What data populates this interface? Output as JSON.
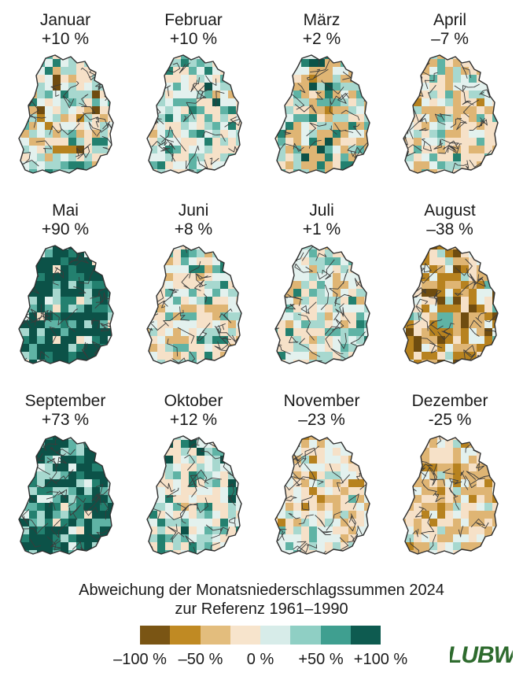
{
  "months": [
    {
      "name": "Januar",
      "pct": "+10 %",
      "mix": [
        0.05,
        0.03,
        0.08,
        0.22,
        0.22,
        0.22,
        0.12,
        0.05,
        0.01
      ]
    },
    {
      "name": "Februar",
      "pct": "+10 %",
      "mix": [
        0.0,
        0.0,
        0.02,
        0.3,
        0.3,
        0.18,
        0.12,
        0.06,
        0.02
      ]
    },
    {
      "name": "März",
      "pct": "+2 %",
      "mix": [
        0.0,
        0.03,
        0.25,
        0.15,
        0.15,
        0.15,
        0.12,
        0.1,
        0.05
      ]
    },
    {
      "name": "April",
      "pct": "–7 %",
      "mix": [
        0.0,
        0.02,
        0.25,
        0.3,
        0.2,
        0.13,
        0.08,
        0.02,
        0.0
      ]
    },
    {
      "name": "Mai",
      "pct": "+90 %",
      "mix": [
        0.0,
        0.0,
        0.0,
        0.03,
        0.05,
        0.1,
        0.15,
        0.2,
        0.47
      ]
    },
    {
      "name": "Juni",
      "pct": "+8 %",
      "mix": [
        0.0,
        0.0,
        0.12,
        0.3,
        0.25,
        0.15,
        0.1,
        0.06,
        0.02
      ]
    },
    {
      "name": "Juli",
      "pct": "+1 %",
      "mix": [
        0.0,
        0.0,
        0.1,
        0.32,
        0.3,
        0.18,
        0.08,
        0.02,
        0.0
      ]
    },
    {
      "name": "August",
      "pct": "–38 %",
      "mix": [
        0.12,
        0.3,
        0.22,
        0.15,
        0.1,
        0.06,
        0.05,
        0.0,
        0.0
      ]
    },
    {
      "name": "September",
      "pct": "+73 %",
      "mix": [
        0.0,
        0.0,
        0.0,
        0.02,
        0.05,
        0.1,
        0.2,
        0.25,
        0.38
      ]
    },
    {
      "name": "Oktober",
      "pct": "+12 %",
      "mix": [
        0.0,
        0.0,
        0.03,
        0.3,
        0.25,
        0.17,
        0.12,
        0.08,
        0.05
      ]
    },
    {
      "name": "November",
      "pct": "–23 %",
      "mix": [
        0.0,
        0.05,
        0.25,
        0.35,
        0.25,
        0.07,
        0.03,
        0.0,
        0.0
      ]
    },
    {
      "name": "Dezember",
      "pct": "-25 %",
      "mix": [
        0.0,
        0.1,
        0.4,
        0.3,
        0.15,
        0.05,
        0.0,
        0.0,
        0.0
      ]
    }
  ],
  "caption": {
    "line1": "Abweichung der Monatsniederschlagssummen 2024",
    "line2": "zur Referenz 1961–1990"
  },
  "legend": {
    "colors": [
      "#7a5514",
      "#c08a23",
      "#e3bd7d",
      "#f7e4cc",
      "#d7ece9",
      "#8fcfc4",
      "#3f9f90",
      "#0e5b50"
    ],
    "ticks": [
      "–100 %",
      "–50 %",
      "0 %",
      "+50 %",
      "+100 %"
    ]
  },
  "logo": {
    "text": "LUBW",
    "color": "#2e6b2e"
  }
}
